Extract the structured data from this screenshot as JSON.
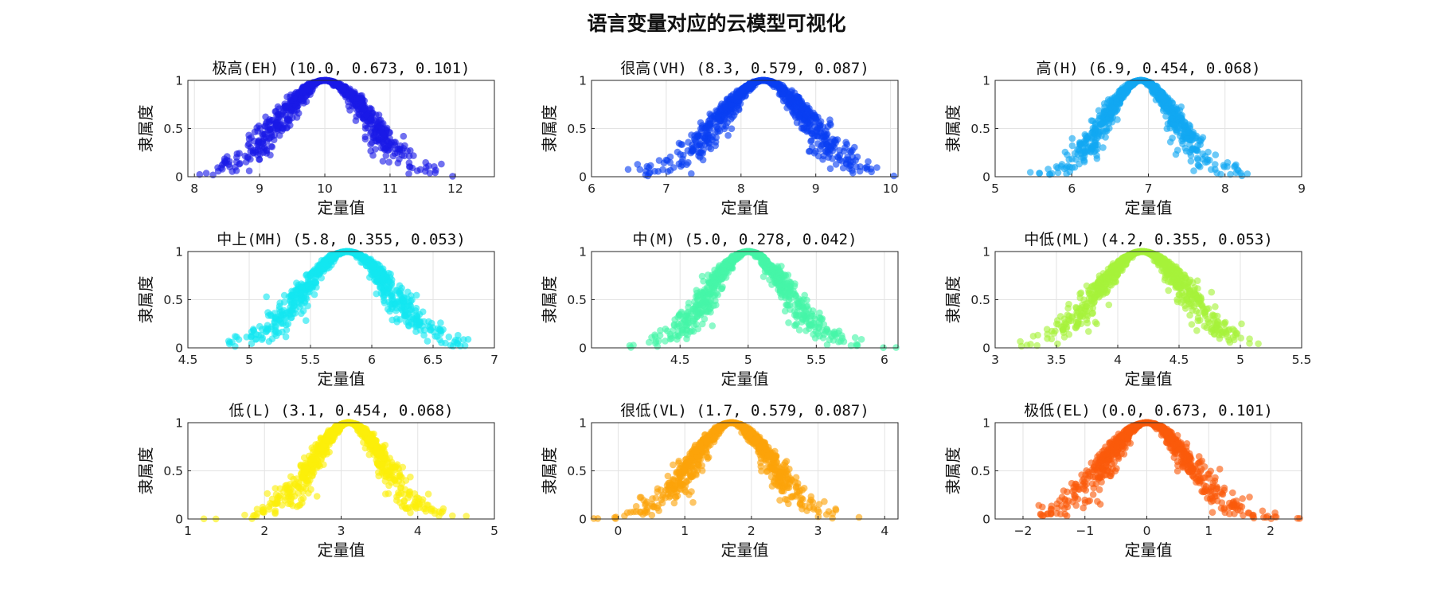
{
  "figure_title": "语言变量对应的云模型可视化",
  "chart_data": [
    {
      "type": "scatter",
      "title": "极高(EH) (10.0, 0.673, 0.101)",
      "term": "极高(EH)",
      "Ex": 10.0,
      "En": 0.673,
      "He": 0.101,
      "color": "#1a1ae6",
      "xlabel": "定量值",
      "ylabel": "隶属度",
      "xlim": [
        7.9,
        12.6
      ],
      "ylim": [
        0,
        1
      ],
      "xticks": [
        8,
        9,
        10,
        11,
        12
      ],
      "yticks": [
        0,
        0.5,
        1
      ],
      "grid": true
    },
    {
      "type": "scatter",
      "title": "很高(VH) (8.3, 0.579, 0.087)",
      "term": "很高(VH)",
      "Ex": 8.3,
      "En": 0.579,
      "He": 0.087,
      "color": "#0a3ff2",
      "xlabel": "定量值",
      "ylabel": "隶属度",
      "xlim": [
        6,
        10.1
      ],
      "ylim": [
        0,
        1
      ],
      "xticks": [
        6,
        7,
        8,
        9,
        10
      ],
      "yticks": [
        0,
        0.5,
        1
      ],
      "grid": true
    },
    {
      "type": "scatter",
      "title": "高(H) (6.9, 0.454, 0.068)",
      "term": "高(H)",
      "Ex": 6.9,
      "En": 0.454,
      "He": 0.068,
      "color": "#12a8f2",
      "xlabel": "定量值",
      "ylabel": "隶属度",
      "xlim": [
        5,
        9
      ],
      "ylim": [
        0,
        1
      ],
      "xticks": [
        5,
        6,
        7,
        8,
        9
      ],
      "yticks": [
        0,
        0.5,
        1
      ],
      "grid": true
    },
    {
      "type": "scatter",
      "title": "中上(MH) (5.8, 0.355, 0.053)",
      "term": "中上(MH)",
      "Ex": 5.8,
      "En": 0.355,
      "He": 0.053,
      "color": "#14e6f0",
      "xlabel": "定量值",
      "ylabel": "隶属度",
      "xlim": [
        4.5,
        7
      ],
      "ylim": [
        0,
        1
      ],
      "xticks": [
        4.5,
        5,
        5.5,
        6,
        6.5,
        7
      ],
      "yticks": [
        0,
        0.5,
        1
      ],
      "grid": true
    },
    {
      "type": "scatter",
      "title": "中(M) (5.0, 0.278, 0.042)",
      "term": "中(M)",
      "Ex": 5.0,
      "En": 0.278,
      "He": 0.042,
      "color": "#45f5a8",
      "xlabel": "定量值",
      "ylabel": "隶属度",
      "xlim": [
        3.85,
        6.1
      ],
      "ylim": [
        0,
        1
      ],
      "xticks": [
        4.5,
        5,
        5.5,
        6
      ],
      "yticks": [
        0,
        0.5,
        1
      ],
      "grid": true
    },
    {
      "type": "scatter",
      "title": "中低(ML) (4.2, 0.355, 0.053)",
      "term": "中低(ML)",
      "Ex": 4.2,
      "En": 0.355,
      "He": 0.053,
      "color": "#a6f23a",
      "xlabel": "定量值",
      "ylabel": "隶属度",
      "xlim": [
        3,
        5.5
      ],
      "ylim": [
        0,
        1
      ],
      "xticks": [
        3,
        3.5,
        4,
        4.5,
        5,
        5.5
      ],
      "yticks": [
        0,
        0.5,
        1
      ],
      "grid": true
    },
    {
      "type": "scatter",
      "title": "低(L) (3.1, 0.454, 0.068)",
      "term": "低(L)",
      "Ex": 3.1,
      "En": 0.454,
      "He": 0.068,
      "color": "#fcef0a",
      "xlabel": "定量值",
      "ylabel": "隶属度",
      "xlim": [
        1,
        5
      ],
      "ylim": [
        0,
        1
      ],
      "xticks": [
        1,
        2,
        3,
        4,
        5
      ],
      "yticks": [
        0,
        0.5,
        1
      ],
      "grid": true
    },
    {
      "type": "scatter",
      "title": "很低(VL) (1.7, 0.579, 0.087)",
      "term": "很低(VL)",
      "Ex": 1.7,
      "En": 0.579,
      "He": 0.087,
      "color": "#fca30a",
      "xlabel": "定量值",
      "ylabel": "隶属度",
      "xlim": [
        -0.4,
        4.2
      ],
      "ylim": [
        0,
        1
      ],
      "xticks": [
        0,
        1,
        2,
        3,
        4
      ],
      "yticks": [
        0,
        0.5,
        1
      ],
      "grid": true
    },
    {
      "type": "scatter",
      "title": "极低(EL) (0.0, 0.673, 0.101)",
      "term": "极低(EL)",
      "Ex": 0.0,
      "En": 0.673,
      "He": 0.101,
      "color": "#fa5a0c",
      "xlabel": "定量值",
      "ylabel": "隶属度",
      "xlim": [
        -2.45,
        2.5
      ],
      "ylim": [
        0,
        1
      ],
      "xticks": [
        -2,
        -1,
        0,
        1,
        2
      ],
      "yticks": [
        0,
        0.5,
        1
      ],
      "grid": true
    }
  ]
}
